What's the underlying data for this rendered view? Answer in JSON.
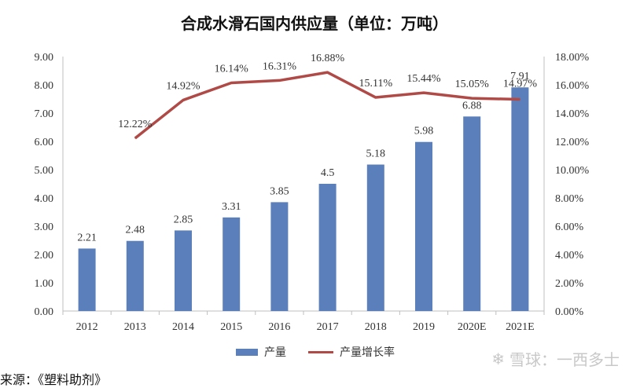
{
  "chart_data": {
    "type": "bar",
    "title": "合成水滑石国内供应量（单位：万吨）",
    "categories": [
      "2012",
      "2013",
      "2014",
      "2015",
      "2016",
      "2017",
      "2018",
      "2019",
      "2020E",
      "2021E"
    ],
    "series": [
      {
        "name": "产量",
        "type": "bar",
        "axis": "left",
        "values": [
          2.21,
          2.48,
          2.85,
          3.31,
          3.85,
          4.5,
          5.18,
          5.98,
          6.88,
          7.91
        ],
        "labels": [
          "2.21",
          "2.48",
          "2.85",
          "3.31",
          "3.85",
          "4.5",
          "5.18",
          "5.98",
          "6.88",
          "7.91"
        ],
        "color": "#5b7fba"
      },
      {
        "name": "产量增长率",
        "type": "line",
        "axis": "right",
        "values": [
          null,
          12.22,
          14.92,
          16.14,
          16.31,
          16.88,
          15.11,
          15.44,
          15.05,
          14.97
        ],
        "labels": [
          "",
          "12.22%",
          "14.92%",
          "16.14%",
          "16.31%",
          "16.88%",
          "15.11%",
          "15.44%",
          "15.05%",
          "14.97%"
        ],
        "color": "#b04a47"
      }
    ],
    "y_left": {
      "min": 0,
      "max": 9,
      "ticks": [
        "0.00",
        "1.00",
        "2.00",
        "3.00",
        "4.00",
        "5.00",
        "6.00",
        "7.00",
        "8.00",
        "9.00"
      ]
    },
    "y_right": {
      "min": 0,
      "max": 18,
      "ticks": [
        "0.00%",
        "2.00%",
        "4.00%",
        "6.00%",
        "8.00%",
        "10.00%",
        "12.00%",
        "14.00%",
        "16.00%",
        "18.00%"
      ]
    },
    "grid": false,
    "legend_position": "bottom"
  },
  "source_text": "来源：《塑料助剂》",
  "watermark_text": "雪球：一西多士"
}
